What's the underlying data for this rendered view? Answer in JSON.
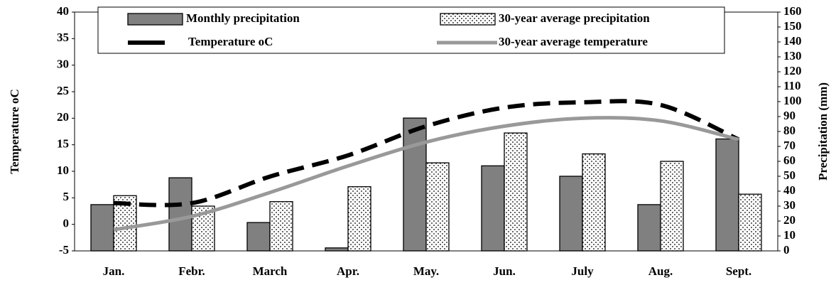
{
  "chart_data": {
    "type": "bar-line",
    "categories": [
      "Jan.",
      "Febr.",
      "March",
      "Apr.",
      "May.",
      "Jun.",
      "July",
      "Aug.",
      "Sept."
    ],
    "series": [
      {
        "name": "Monthly precipitation",
        "color": "#808080",
        "type": "bar",
        "axis": "y2",
        "values": [
          31,
          49,
          19,
          2,
          89,
          57,
          50,
          31,
          75
        ]
      },
      {
        "name": "30-year average precipitation",
        "color": "#ffffff",
        "type": "bar",
        "pattern": "dotted",
        "axis": "y2",
        "values": [
          37,
          30,
          33,
          43,
          59,
          79,
          65,
          60,
          38
        ]
      },
      {
        "name": "Temperature oC",
        "color": "#000000",
        "type": "line",
        "style": "dashed",
        "axis": "y",
        "values": [
          4,
          4,
          9,
          13,
          18.5,
          22,
          23,
          22.5,
          16
        ]
      },
      {
        "name": "30-year average temperature",
        "color": "#999999",
        "type": "line",
        "style": "solid",
        "axis": "y",
        "values": [
          -1,
          1.5,
          6,
          11,
          15.5,
          18.5,
          20,
          19.5,
          16
        ]
      }
    ],
    "ylabel": "Temperature oC",
    "y2label": "Precipitation (mm)",
    "ylim": [
      -5,
      40
    ],
    "yticks": [
      -5,
      0,
      5,
      10,
      15,
      20,
      25,
      30,
      35,
      40
    ],
    "y2lim": [
      0,
      160
    ],
    "y2ticks": [
      0,
      10,
      20,
      30,
      40,
      50,
      60,
      70,
      80,
      90,
      100,
      110,
      120,
      130,
      140,
      150,
      160
    ],
    "legend": "top",
    "grid": false
  }
}
